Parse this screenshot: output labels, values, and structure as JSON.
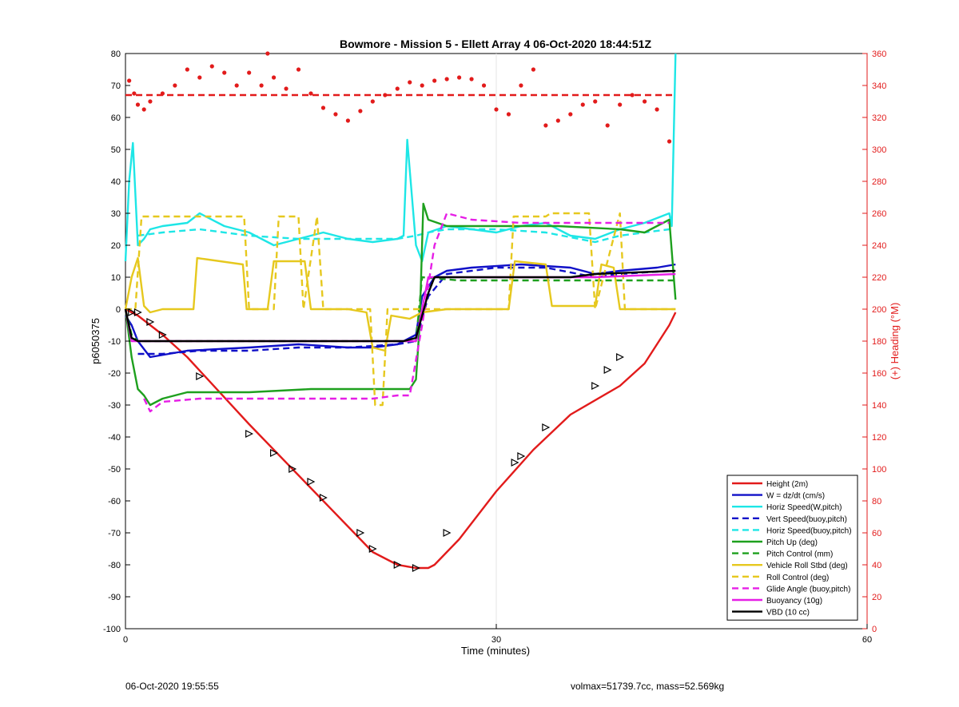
{
  "chart_data": {
    "type": "line",
    "title": "Bowmore - Mission 5 - Ellett Array 4 06-Oct-2020 18:44:51Z",
    "xlabel": "Time (minutes)",
    "ylabel_left": "p6050375",
    "ylabel_right": "(+) Heading (°M)",
    "xlim": [
      0,
      60
    ],
    "ylim_left": [
      -100,
      80
    ],
    "ylim_right": [
      0,
      360
    ],
    "xticks": [
      0,
      30,
      60
    ],
    "yticks_left": [
      -100,
      -90,
      -80,
      -70,
      -60,
      -50,
      -40,
      -30,
      -20,
      -10,
      0,
      10,
      20,
      30,
      40,
      50,
      60,
      70,
      80
    ],
    "yticks_right": [
      0,
      20,
      40,
      60,
      80,
      100,
      120,
      140,
      160,
      180,
      200,
      220,
      240,
      260,
      280,
      300,
      320,
      340,
      360
    ],
    "grid": "x-major",
    "legend_position": "bottom-right",
    "series": [
      {
        "name": "Height (2m)",
        "color": "#e21b1b",
        "style": "solid",
        "axis": "left",
        "x": [
          0,
          1,
          3,
          5,
          10,
          15,
          18,
          20,
          22,
          23.5,
          24.5,
          25,
          27,
          30,
          33,
          36,
          40,
          42,
          44,
          44.5
        ],
        "y": [
          0,
          -2,
          -8,
          -15,
          -36,
          -56,
          -68,
          -76,
          -80,
          -81,
          -81,
          -80,
          -72,
          -57,
          -44,
          -33,
          -24,
          -17,
          -5,
          -1
        ]
      },
      {
        "name": "W = dz/dt (cm/s)",
        "color": "#1010c8",
        "style": "solid",
        "axis": "left",
        "x": [
          0,
          0.5,
          1,
          2,
          5,
          10,
          14,
          18,
          20,
          22,
          23.5,
          24,
          25,
          26,
          28,
          32,
          36,
          38,
          40,
          43,
          44.5
        ],
        "y": [
          -2,
          -5,
          -10,
          -15,
          -13,
          -12,
          -11,
          -12,
          -12,
          -11,
          -8,
          4,
          10,
          12,
          13,
          14,
          13,
          11,
          12,
          13,
          14
        ]
      },
      {
        "name": "Horiz Speed(W,pitch)",
        "color": "#1ee6e6",
        "style": "solid",
        "axis": "left",
        "x": [
          0,
          0.3,
          0.6,
          1,
          1.5,
          2,
          3,
          5,
          6,
          8,
          10,
          12,
          14,
          16,
          18,
          20,
          22,
          22.5,
          22.8,
          23.5,
          24,
          24.5,
          26,
          28,
          30,
          32,
          34,
          36,
          38,
          40,
          42,
          44,
          44.2,
          44.5
        ],
        "y": [
          15,
          40,
          52,
          20,
          22,
          25,
          26,
          27,
          30,
          26,
          24,
          20,
          22,
          24,
          22,
          21,
          22,
          23,
          53,
          20,
          15,
          24,
          26,
          25,
          24,
          26,
          27,
          23,
          22,
          25,
          27,
          30,
          26,
          80
        ]
      },
      {
        "name": "Vert Speed(buoy,pitch)",
        "color": "#1010c8",
        "style": "dash",
        "axis": "left",
        "x": [
          1,
          3,
          6,
          10,
          14,
          18,
          22,
          23.5,
          24.5,
          26,
          30,
          34,
          38,
          40,
          44
        ],
        "y": [
          -14,
          -14,
          -13,
          -13,
          -12,
          -12,
          -11,
          -10,
          4,
          11,
          13,
          13,
          10,
          11,
          12
        ]
      },
      {
        "name": "Horiz Speed(buoy,pitch)",
        "color": "#1ee6e6",
        "style": "dash",
        "axis": "left",
        "x": [
          1,
          3,
          6,
          10,
          14,
          18,
          22,
          23.5,
          24.5,
          26,
          30,
          34,
          38,
          40,
          44
        ],
        "y": [
          23,
          24,
          25,
          23,
          22,
          22,
          22,
          23,
          24,
          25,
          25,
          24,
          21,
          23,
          25
        ]
      },
      {
        "name": "Pitch Up (deg)",
        "color": "#1ea01e",
        "style": "solid",
        "axis": "left",
        "x": [
          0,
          0.5,
          1,
          1.5,
          2,
          3,
          5,
          10,
          15,
          20,
          22,
          23,
          23.5,
          23.8,
          24.1,
          24.5,
          26,
          30,
          35,
          40,
          42,
          44,
          44.5
        ],
        "y": [
          0,
          -15,
          -25,
          -27,
          -30,
          -28,
          -26,
          -26,
          -25,
          -25,
          -25,
          -25,
          -22,
          -5,
          33,
          28,
          26,
          26,
          26,
          25,
          24,
          28,
          3
        ]
      },
      {
        "name": "Pitch Control (mm)",
        "color": "#1ea01e",
        "style": "dash",
        "axis": "left",
        "x": [
          0,
          0.5,
          1,
          23.5,
          24,
          27,
          36,
          44.5
        ],
        "y": [
          0,
          -8,
          -10,
          -10,
          10,
          9,
          9,
          9
        ]
      },
      {
        "name": "Vehicle Roll Stbd (deg)",
        "color": "#e6c81e",
        "style": "solid",
        "axis": "left",
        "x": [
          0,
          0.5,
          1,
          1.5,
          2,
          3,
          5.5,
          5.8,
          9.5,
          9.8,
          11.5,
          12,
          14.5,
          15,
          16,
          18,
          19.5,
          20,
          21,
          21.5,
          23,
          24,
          26,
          30,
          31,
          31.5,
          34,
          34.5,
          38,
          38.5,
          39.5,
          40,
          41,
          44.5
        ],
        "y": [
          0,
          10,
          16,
          1,
          -1,
          0,
          0,
          16,
          14,
          0,
          0,
          15,
          15,
          0,
          0,
          0,
          -1,
          -12,
          -13,
          -2,
          -3,
          -1,
          0,
          0,
          0,
          15,
          14,
          1,
          1,
          14,
          13,
          0,
          0,
          0
        ]
      },
      {
        "name": "Roll Control (deg)",
        "color": "#e6c81e",
        "style": "dash",
        "axis": "left",
        "x": [
          0,
          0.8,
          1.3,
          5.5,
          6,
          9.6,
          10,
          12,
          12.4,
          14,
          14.4,
          15.5,
          16,
          19.8,
          20.2,
          20.8,
          21.2,
          22.2,
          22.6,
          31,
          31.4,
          34,
          34.4,
          37.5,
          38,
          40,
          40.4,
          42,
          42.4,
          44.5
        ],
        "y": [
          0,
          0,
          29,
          29,
          29,
          29,
          0,
          0,
          29,
          29,
          0,
          29,
          0,
          0,
          -30,
          -30,
          0,
          0,
          0,
          0,
          29,
          29,
          30,
          30,
          0,
          30,
          0,
          0,
          0,
          0
        ]
      },
      {
        "name": "Glide Angle (buoy,pitch)",
        "color": "#e61ee6",
        "style": "dash",
        "axis": "left",
        "x": [
          1.5,
          2,
          3,
          6,
          10,
          14,
          18,
          20,
          22,
          23,
          24,
          25,
          26,
          28,
          32,
          36,
          40,
          44
        ],
        "y": [
          -28,
          -32,
          -29,
          -28,
          -28,
          -28,
          -28,
          -28,
          -27,
          -27,
          -5,
          20,
          30,
          28,
          27,
          27,
          27,
          27
        ]
      },
      {
        "name": "Buoyancy (10g)",
        "color": "#e61ee6",
        "style": "solid",
        "axis": "left",
        "x": [
          0,
          0.5,
          1,
          23.5,
          24.5,
          27,
          36,
          38,
          44.5
        ],
        "y": [
          0,
          -10,
          -10,
          -10,
          10,
          10,
          10,
          10,
          11
        ]
      },
      {
        "name": "VBD (10 cc)",
        "color": "#000000",
        "style": "solid",
        "axis": "left",
        "x": [
          0,
          0.5,
          1,
          22.5,
          23.5,
          24.5,
          25,
          36,
          38,
          44.5
        ],
        "y": [
          0,
          -9,
          -10,
          -10,
          -9,
          5,
          10,
          10,
          11,
          12
        ]
      },
      {
        "name": "Heading",
        "color": "#e21b1b",
        "style": "dots",
        "axis": "right",
        "legend": false,
        "x": [
          0.3,
          0.7,
          1,
          1.5,
          2,
          3,
          4,
          5,
          6,
          7,
          8,
          9,
          10,
          11,
          11.5,
          12,
          13,
          14,
          15,
          16,
          17,
          18,
          19,
          20,
          21,
          22,
          23,
          24,
          25,
          26,
          27,
          28,
          29,
          30,
          31,
          32,
          33,
          34,
          35,
          36,
          37,
          38,
          39,
          40,
          41,
          42,
          43,
          44
        ],
        "y": [
          343,
          335,
          328,
          325,
          330,
          335,
          340,
          350,
          345,
          352,
          348,
          340,
          348,
          340,
          360,
          345,
          338,
          350,
          335,
          326,
          322,
          318,
          324,
          330,
          334,
          338,
          342,
          340,
          343,
          344,
          345,
          344,
          340,
          325,
          322,
          340,
          350,
          315,
          318,
          322,
          328,
          330,
          315,
          328,
          334,
          330,
          325,
          305
        ]
      },
      {
        "name": "Heading Target",
        "color": "#e21b1b",
        "style": "dash",
        "axis": "right",
        "legend": false,
        "x": [
          0,
          44.5
        ],
        "y": [
          334,
          334
        ]
      },
      {
        "name": "Height Markers",
        "color": "#000000",
        "style": "triangles",
        "axis": "left",
        "legend": false,
        "x": [
          0.5,
          1,
          2,
          3,
          6,
          10,
          12,
          13.5,
          15,
          16,
          19,
          20,
          22,
          23.5,
          26,
          31.5,
          32,
          34,
          38,
          39,
          40
        ],
        "y": [
          -1,
          -1,
          -4,
          -8,
          -21,
          -39,
          -45,
          -50,
          -54,
          -59,
          -70,
          -75,
          -80,
          -81,
          -70,
          -48,
          -46,
          -37,
          -24,
          -19,
          -15
        ]
      }
    ]
  },
  "footer": {
    "left_text": "06-Oct-2020 19:55:55",
    "right_text": "volmax=51739.7cc, mass=52.569kg"
  }
}
